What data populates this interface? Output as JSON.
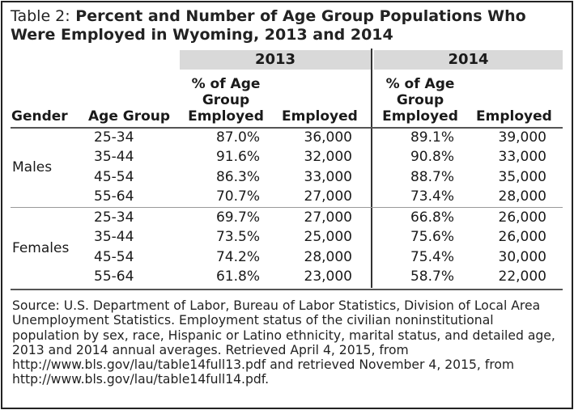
{
  "title": {
    "label": "Table 2:",
    "text": "Percent and Number of Age Group Populations Who Were Employed in Wyoming, 2013 and 2014"
  },
  "years": [
    "2013",
    "2014"
  ],
  "headers": {
    "gender": "Gender",
    "age_group": "Age Group",
    "pct_line1": "% of Age",
    "pct_line2": "Group",
    "pct_line3": "Employed",
    "employed": "Employed"
  },
  "groups": [
    {
      "gender": "Males",
      "rows": [
        {
          "age": "25-34",
          "pct13": "87.0%",
          "emp13": "36,000",
          "pct14": "89.1%",
          "emp14": "39,000"
        },
        {
          "age": "35-44",
          "pct13": "91.6%",
          "emp13": "32,000",
          "pct14": "90.8%",
          "emp14": "33,000"
        },
        {
          "age": "45-54",
          "pct13": "86.3%",
          "emp13": "33,000",
          "pct14": "88.7%",
          "emp14": "35,000"
        },
        {
          "age": "55-64",
          "pct13": "70.7%",
          "emp13": "27,000",
          "pct14": "73.4%",
          "emp14": "28,000"
        }
      ]
    },
    {
      "gender": "Females",
      "rows": [
        {
          "age": "25-34",
          "pct13": "69.7%",
          "emp13": "27,000",
          "pct14": "66.8%",
          "emp14": "26,000"
        },
        {
          "age": "35-44",
          "pct13": "73.5%",
          "emp13": "25,000",
          "pct14": "75.6%",
          "emp14": "26,000"
        },
        {
          "age": "45-54",
          "pct13": "74.2%",
          "emp13": "28,000",
          "pct14": "75.4%",
          "emp14": "30,000"
        },
        {
          "age": "55-64",
          "pct13": "61.8%",
          "emp13": "23,000",
          "pct14": "58.7%",
          "emp14": "22,000"
        }
      ]
    }
  ],
  "source": "Source: U.S. Department of Labor, Bureau of Labor Statistics, Division of Local Area Unemployment Statistics. Employment status of the civilian noninstitutional population by sex, race, Hispanic or Latino ethnicity, marital status, and detailed age, 2013 and 2014 annual averages. Retrieved April 4, 2015, from http://www.bls.gov/lau/table14full13.pdf and retrieved November 4, 2015, from http://www.bls.gov/lau/table14full14.pdf."
}
